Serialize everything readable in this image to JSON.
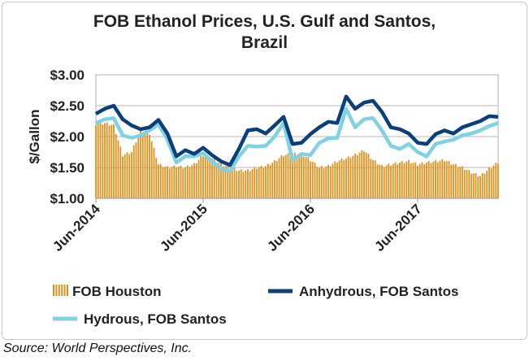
{
  "chart_data": {
    "type": "bar+line",
    "title_line1": "FOB Ethanol Prices, U.S. Gulf and Santos,",
    "title_line2": "Brazil",
    "ylabel": "$/Gallon",
    "xlabel": "",
    "ylim": [
      1.0,
      3.0
    ],
    "yticks": [
      "$1.00",
      "$1.50",
      "$2.00",
      "$2.50",
      "$3.00"
    ],
    "ytick_values": [
      1.0,
      1.5,
      2.0,
      2.5,
      3.0
    ],
    "xtick_labels": [
      "Jun-2014",
      "Jun-2015",
      "Jun-2016",
      "Jun-2017"
    ],
    "xtick_month_index": [
      0,
      12,
      24,
      36
    ],
    "x_start": "Jun-2014",
    "x_step": "month",
    "grid": true,
    "legend_placement": "bottom",
    "series": [
      {
        "name": "FOB Houston",
        "kind": "bar",
        "color": "#E0921E",
        "values": [
          2.2,
          2.22,
          2.18,
          1.7,
          1.75,
          2.1,
          2.05,
          1.55,
          1.5,
          1.52,
          1.5,
          1.55,
          1.7,
          1.65,
          1.55,
          1.5,
          1.45,
          1.45,
          1.5,
          1.52,
          1.6,
          1.7,
          1.72,
          1.72,
          1.62,
          1.5,
          1.52,
          1.6,
          1.65,
          1.7,
          1.78,
          1.62,
          1.52,
          1.55,
          1.58,
          1.6,
          1.55,
          1.58,
          1.6,
          1.62,
          1.55,
          1.5,
          1.42,
          1.36,
          1.48,
          1.58
        ]
      },
      {
        "name": "Anhydrous, FOB Santos",
        "kind": "line",
        "color": "#0B3F7A",
        "values": [
          2.37,
          2.45,
          2.5,
          2.28,
          2.18,
          2.12,
          2.15,
          2.27,
          2.05,
          1.68,
          1.78,
          1.72,
          1.82,
          1.7,
          1.6,
          1.54,
          1.8,
          2.1,
          2.12,
          2.05,
          2.18,
          2.32,
          1.88,
          1.9,
          2.04,
          2.15,
          2.24,
          2.22,
          2.65,
          2.45,
          2.55,
          2.58,
          2.4,
          2.15,
          2.12,
          2.05,
          1.9,
          1.88,
          2.04,
          2.1,
          2.05,
          2.15,
          2.2,
          2.25,
          2.33,
          2.32
        ]
      },
      {
        "name": "Hydrous, FOB Santos",
        "kind": "line",
        "color": "#7FD1E3",
        "values": [
          2.22,
          2.28,
          2.3,
          2.02,
          1.98,
          2.02,
          2.1,
          2.2,
          1.95,
          1.58,
          1.68,
          1.68,
          1.73,
          1.6,
          1.48,
          1.44,
          1.68,
          1.85,
          1.84,
          1.85,
          2.0,
          2.22,
          1.62,
          1.72,
          1.7,
          1.9,
          1.97,
          1.98,
          2.45,
          2.15,
          2.28,
          2.3,
          2.1,
          1.85,
          1.8,
          1.88,
          1.75,
          1.68,
          1.88,
          1.92,
          1.95,
          2.02,
          2.05,
          2.1,
          2.17,
          2.22
        ]
      }
    ]
  },
  "source": "Source: World Perspectives, Inc."
}
